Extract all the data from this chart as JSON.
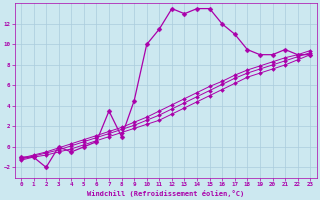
{
  "xlabel": "Windchill (Refroidissement éolien,°C)",
  "bg_color": "#cce8f0",
  "grid_color": "#aaccdd",
  "line_color": "#aa00aa",
  "xlim": [
    -0.5,
    23.5
  ],
  "ylim": [
    -3.0,
    14.0
  ],
  "xticks": [
    0,
    1,
    2,
    3,
    4,
    5,
    6,
    7,
    8,
    9,
    10,
    11,
    12,
    13,
    14,
    15,
    16,
    17,
    18,
    19,
    20,
    21,
    22,
    23
  ],
  "yticks": [
    -2,
    0,
    2,
    4,
    6,
    8,
    10,
    12
  ],
  "curve_x": [
    0,
    1,
    2,
    3,
    4,
    5,
    6,
    7,
    8,
    9,
    10,
    11,
    12,
    13,
    14,
    15,
    16,
    17,
    18,
    19,
    20,
    21,
    22,
    23
  ],
  "curve_y": [
    -1.0,
    -1.0,
    -2.0,
    0.0,
    -0.5,
    0.0,
    0.5,
    3.5,
    1.0,
    4.5,
    10.0,
    11.5,
    13.5,
    13.0,
    13.5,
    13.5,
    12.0,
    11.0,
    9.5,
    9.0,
    9.0,
    9.5,
    9.0,
    9.0
  ],
  "line1_x": [
    0,
    1,
    2,
    3,
    4,
    5,
    6,
    7,
    8,
    9,
    10,
    11,
    12,
    13,
    14,
    15,
    16,
    17,
    18,
    19,
    20,
    21,
    22,
    23
  ],
  "line1_y": [
    -1.3,
    -1.0,
    -0.8,
    -0.5,
    -0.2,
    0.2,
    0.6,
    1.0,
    1.4,
    1.8,
    2.2,
    2.6,
    3.2,
    3.8,
    4.4,
    5.0,
    5.6,
    6.2,
    6.8,
    7.2,
    7.6,
    8.0,
    8.5,
    9.0
  ],
  "line2_x": [
    0,
    1,
    2,
    3,
    4,
    5,
    6,
    7,
    8,
    9,
    10,
    11,
    12,
    13,
    14,
    15,
    16,
    17,
    18,
    19,
    20,
    21,
    22,
    23
  ],
  "line2_y": [
    -1.2,
    -0.9,
    -0.6,
    -0.3,
    0.1,
    0.5,
    0.9,
    1.3,
    1.7,
    2.1,
    2.6,
    3.1,
    3.7,
    4.3,
    4.9,
    5.5,
    6.1,
    6.7,
    7.2,
    7.6,
    8.0,
    8.4,
    8.8,
    9.2
  ],
  "line3_x": [
    0,
    1,
    2,
    3,
    4,
    5,
    6,
    7,
    8,
    9,
    10,
    11,
    12,
    13,
    14,
    15,
    16,
    17,
    18,
    19,
    20,
    21,
    22,
    23
  ],
  "line3_y": [
    -1.1,
    -0.8,
    -0.5,
    -0.1,
    0.3,
    0.7,
    1.1,
    1.5,
    1.9,
    2.4,
    2.9,
    3.5,
    4.1,
    4.7,
    5.3,
    5.9,
    6.4,
    7.0,
    7.5,
    7.9,
    8.3,
    8.7,
    9.0,
    9.4
  ]
}
